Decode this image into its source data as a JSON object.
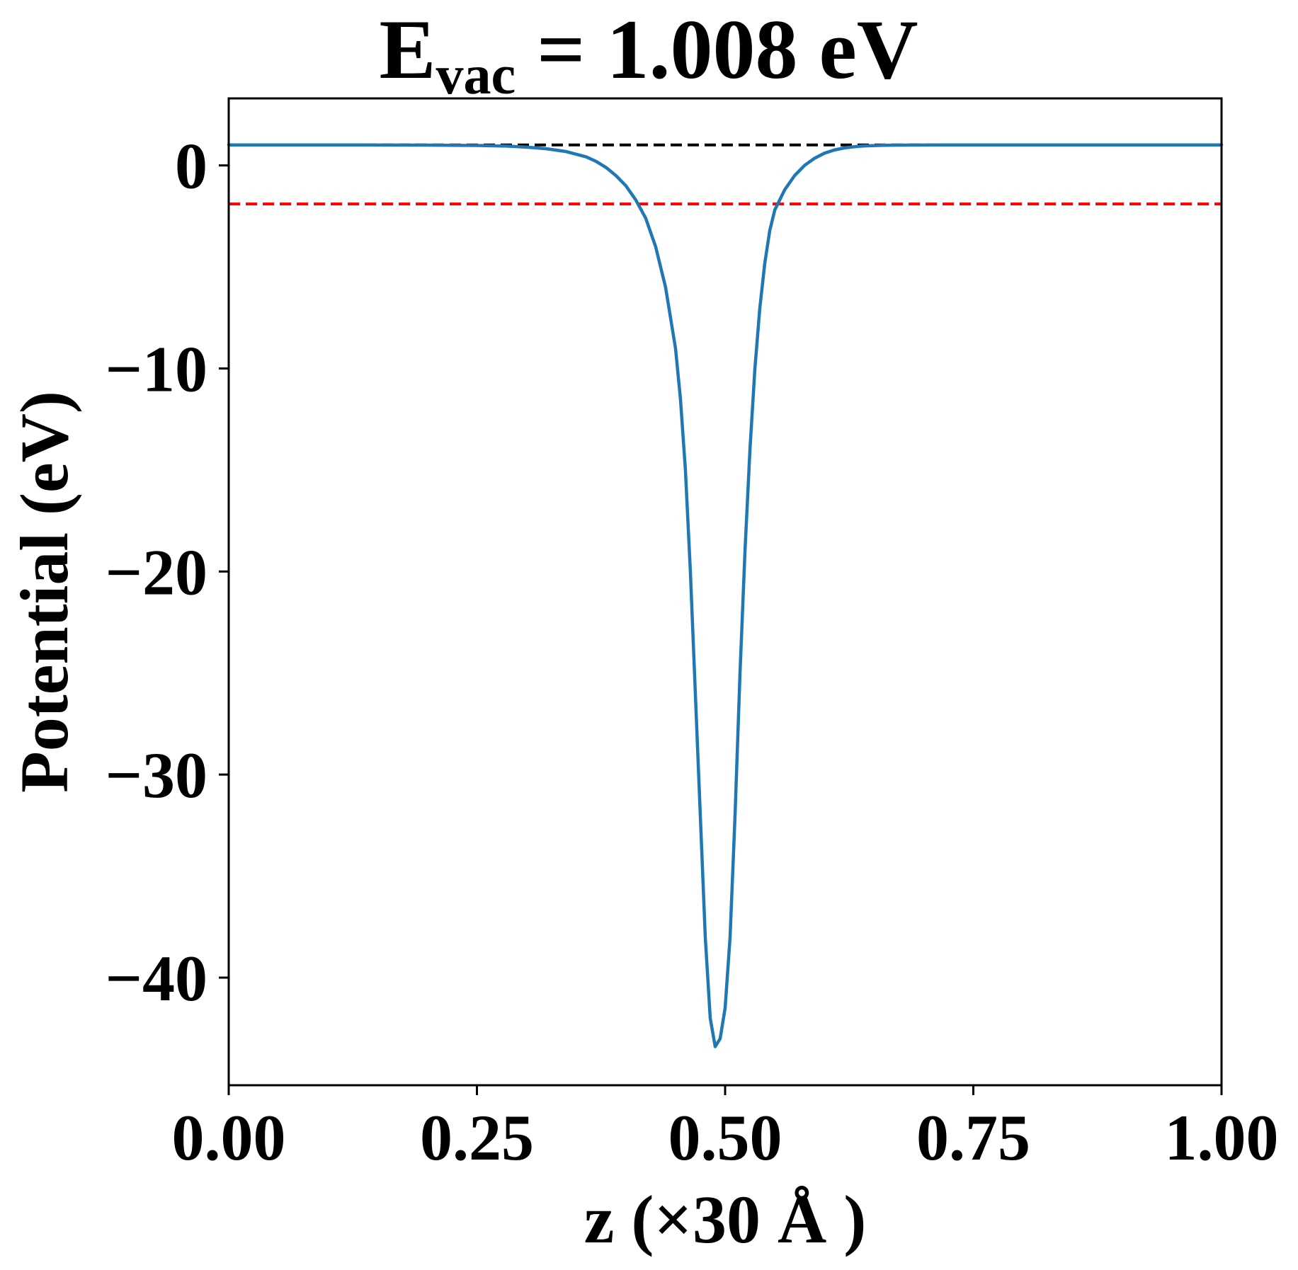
{
  "chart_data": {
    "type": "line",
    "title": {
      "main": "E",
      "subscript": "vac",
      "rest": " = 1.008 eV"
    },
    "xlabel": "z (×30 Å )",
    "ylabel": "Potential (eV)",
    "xlim": [
      0.0,
      1.0
    ],
    "ylim": [
      -45.3,
      3.3
    ],
    "xticks": [
      0.0,
      0.25,
      0.5,
      0.75,
      1.0
    ],
    "xtick_labels": [
      "0.00",
      "0.25",
      "0.50",
      "0.75",
      "1.00"
    ],
    "yticks": [
      0,
      -10,
      -20,
      -30,
      -40
    ],
    "ytick_labels": [
      "0",
      "−10",
      "−20",
      "−30",
      "−40"
    ],
    "grid": false,
    "series": [
      {
        "type": "line",
        "color": "#1f77b4",
        "x": [
          0.0,
          0.05,
          0.1,
          0.15,
          0.2,
          0.25,
          0.28,
          0.3,
          0.32,
          0.34,
          0.36,
          0.37,
          0.38,
          0.39,
          0.4,
          0.41,
          0.42,
          0.43,
          0.44,
          0.45,
          0.455,
          0.46,
          0.465,
          0.47,
          0.475,
          0.48,
          0.485,
          0.49,
          0.495,
          0.5,
          0.505,
          0.51,
          0.515,
          0.52,
          0.525,
          0.53,
          0.535,
          0.54,
          0.545,
          0.55,
          0.56,
          0.57,
          0.58,
          0.59,
          0.6,
          0.61,
          0.62,
          0.63,
          0.64,
          0.66,
          0.68,
          0.7,
          0.72,
          0.75,
          0.8,
          0.85,
          0.9,
          0.95,
          1.0
        ],
        "y": [
          1.008,
          1.008,
          1.008,
          1.005,
          1.0,
          0.98,
          0.95,
          0.9,
          0.82,
          0.68,
          0.42,
          0.2,
          -0.1,
          -0.5,
          -1.0,
          -1.7,
          -2.6,
          -4.0,
          -6.0,
          -9.0,
          -11.5,
          -15.0,
          -20.0,
          -26.0,
          -32.0,
          -38.0,
          -42.0,
          -43.4,
          -43.0,
          -41.5,
          -38.0,
          -32.0,
          -25.0,
          -19.0,
          -14.0,
          -10.0,
          -7.0,
          -4.8,
          -3.2,
          -2.2,
          -1.2,
          -0.5,
          0.0,
          0.35,
          0.6,
          0.76,
          0.86,
          0.92,
          0.96,
          0.99,
          1.0,
          1.005,
          1.008,
          1.008,
          1.008,
          1.008,
          1.008,
          1.008,
          1.008
        ]
      }
    ],
    "reference_lines": [
      {
        "type": "hline",
        "y": 1.008,
        "color": "#000000",
        "style": "dashed"
      },
      {
        "type": "hline",
        "y": -1.9,
        "color": "#ff0000",
        "style": "dashed"
      }
    ]
  }
}
